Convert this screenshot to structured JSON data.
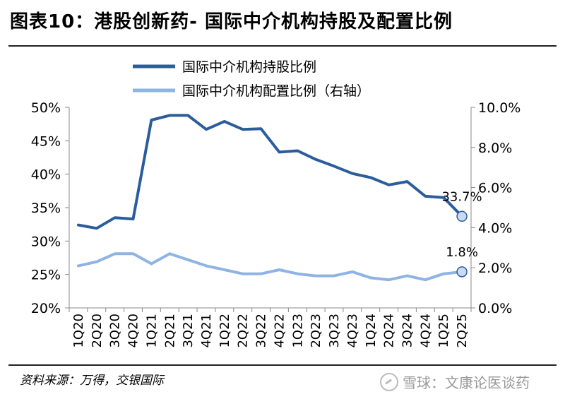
{
  "title": "图表10：港股创新药- 国际中介机构持股及配置比例",
  "source": "资料来源：万得，交银国际",
  "watermark": "雪球：文康论医谈药",
  "colors": {
    "holding": "#2b5d9c",
    "allocation": "#8fb4e3",
    "marker_fill": "#c9daf2"
  },
  "chart_data": {
    "type": "line",
    "title": "图表10：港股创新药- 国际中介机构持股及配置比例",
    "categories": [
      "1Q20",
      "2Q20",
      "3Q20",
      "4Q20",
      "1Q21",
      "2Q21",
      "3Q21",
      "4Q21",
      "1Q22",
      "2Q22",
      "3Q22",
      "4Q22",
      "1Q23",
      "2Q23",
      "3Q23",
      "4Q23",
      "1Q24",
      "2Q24",
      "3Q24",
      "4Q24",
      "1Q25",
      "2Q25"
    ],
    "x": [
      "1Q20",
      "",
      "2Q20",
      "",
      "3Q20",
      "",
      "4Q20",
      "",
      "1Q21",
      "",
      "2Q21",
      "",
      "3Q21",
      "",
      "4Q21",
      "",
      "1Q22",
      "",
      "2Q22",
      "",
      "3Q22",
      "",
      "4Q22",
      "",
      "1Q23",
      "",
      "2Q23",
      "",
      "3Q23",
      "",
      "4Q23",
      "",
      "1Q24",
      "",
      "2Q24",
      "",
      "3Q24",
      "",
      "4Q24",
      "",
      "1Q25",
      "",
      "2Q25"
    ],
    "series": [
      {
        "name": "国际中介机构持股比例",
        "axis": "left",
        "values": [
          32.4,
          31.9,
          33.5,
          33.3,
          48.1,
          48.8,
          48.8,
          46.7,
          47.9,
          46.7,
          46.8,
          43.3,
          43.5,
          42.2,
          41.2,
          40.1,
          39.5,
          38.4,
          38.9,
          36.7,
          36.5,
          33.7
        ],
        "end_label": "33.7%"
      },
      {
        "name": "国际中介机构配置比例（右轴）",
        "axis": "right",
        "values": [
          2.1,
          2.3,
          2.7,
          2.7,
          2.2,
          2.7,
          2.4,
          2.1,
          1.9,
          1.7,
          1.7,
          1.9,
          1.7,
          1.6,
          1.6,
          1.8,
          1.5,
          1.4,
          1.6,
          1.4,
          1.7,
          1.8
        ],
        "end_label": "1.8%"
      }
    ],
    "y_left": {
      "min": 20,
      "max": 50,
      "step": 5,
      "ticks": [
        "20%",
        "25%",
        "30%",
        "35%",
        "40%",
        "45%",
        "50%"
      ]
    },
    "y_right": {
      "min": 0,
      "max": 10,
      "step": 2,
      "ticks": [
        "0.0%",
        "2.0%",
        "4.0%",
        "6.0%",
        "8.0%",
        "10.0%"
      ]
    },
    "legend_position": "top-center",
    "grid": false
  }
}
